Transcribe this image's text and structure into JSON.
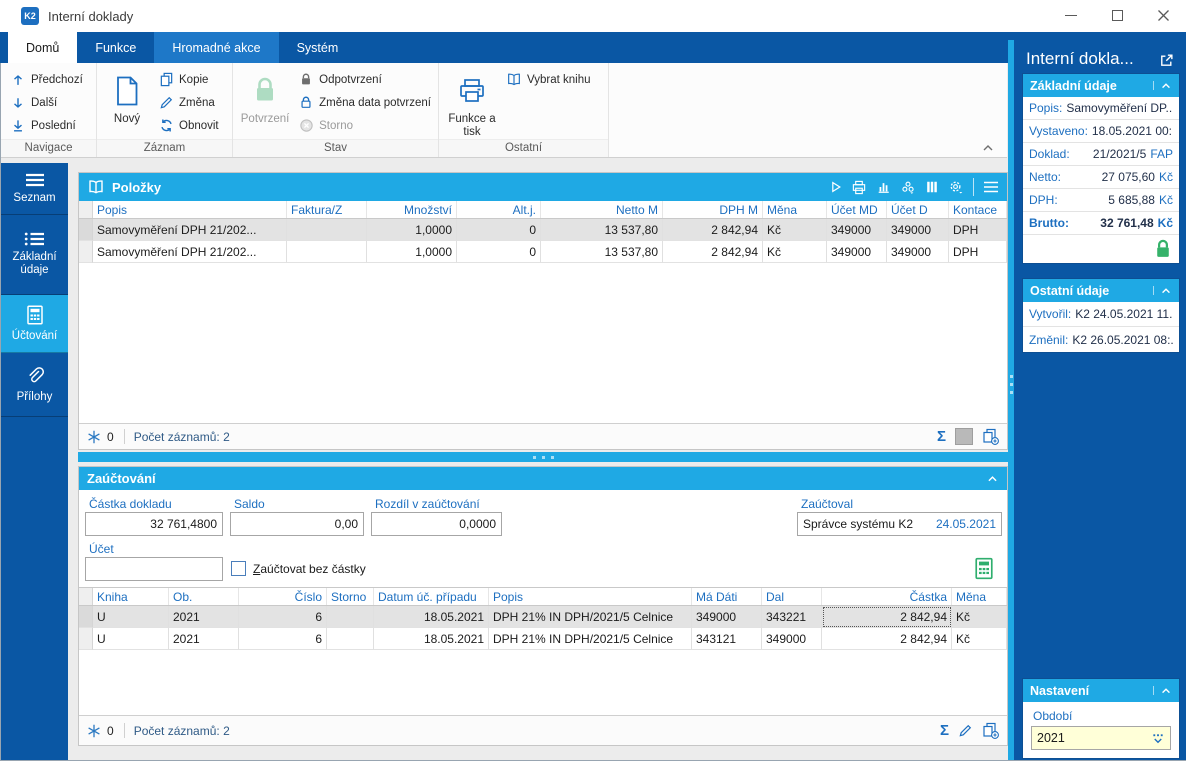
{
  "window": {
    "title": "Interní doklady",
    "logo_text": "K2"
  },
  "tabs": [
    {
      "label": "Domů",
      "state": "active"
    },
    {
      "label": "Funkce",
      "state": "normal"
    },
    {
      "label": "Hromadné akce",
      "state": "highlighted"
    },
    {
      "label": "Systém",
      "state": "normal"
    }
  ],
  "ribbon": {
    "groups": [
      {
        "label": "Navigace",
        "buttons": [
          {
            "label": "Předchozí",
            "icon": "arrow-up-icon"
          },
          {
            "label": "Další",
            "icon": "arrow-down-icon"
          },
          {
            "label": "Poslední",
            "icon": "arrow-down-line-icon"
          }
        ]
      },
      {
        "label": "Záznam",
        "big_button": {
          "label": "Nový",
          "icon": "new-document-icon"
        },
        "buttons": [
          {
            "label": "Kopie",
            "icon": "copy-icon"
          },
          {
            "label": "Změna",
            "icon": "pencil-icon"
          },
          {
            "label": "Obnovit",
            "icon": "refresh-icon"
          }
        ]
      },
      {
        "label": "Stav",
        "big_button": {
          "label": "Potvrzení",
          "icon": "lock-green-icon",
          "disabled": true
        },
        "buttons": [
          {
            "label": "Odpotvrzení",
            "icon": "lock-dark-icon"
          },
          {
            "label": "Změna data potvrzení",
            "icon": "lock-blue-icon"
          },
          {
            "label": "Storno",
            "icon": "cancel-circle-icon",
            "disabled": true
          }
        ]
      },
      {
        "label": "Ostatní",
        "big_button": {
          "label": "Funkce a tisk",
          "icon": "printer-icon"
        },
        "buttons": [
          {
            "label": "Vybrat knihu",
            "icon": "open-book-icon"
          }
        ]
      }
    ]
  },
  "sidebar": {
    "items": [
      {
        "label": "Seznam",
        "icon": "menu-lines-icon",
        "active": false
      },
      {
        "label": "Základní údaje",
        "icon": "detail-list-icon",
        "active": false
      },
      {
        "label": "Účtování",
        "icon": "calculator-icon",
        "active": true
      },
      {
        "label": "Přílohy",
        "icon": "paperclip-icon",
        "active": false
      }
    ]
  },
  "polozky_panel": {
    "title": "Položky",
    "toolbar_icons": [
      "run-icon",
      "print-icon",
      "chart-icon",
      "related-icon",
      "columns-icon",
      "settings-icon",
      "menu-icon"
    ],
    "table": {
      "columns": [
        "Popis",
        "Faktura/Z",
        "Množství",
        "Alt.j.",
        "Netto M",
        "DPH M",
        "Měna",
        "Účet MD",
        "Účet D",
        "Kontace"
      ],
      "rows": [
        [
          "Samovyměření DPH 21/202...",
          "",
          "1,0000",
          "0",
          "13 537,80",
          "2 842,94",
          "Kč",
          "349000",
          "349000",
          "DPH"
        ],
        [
          "Samovyměření DPH 21/202...",
          "",
          "1,0000",
          "0",
          "13 537,80",
          "2 842,94",
          "Kč",
          "349000",
          "349000",
          "DPH"
        ]
      ]
    },
    "footer": {
      "pinned_count": "0",
      "records_text": "Počet záznamů: 2"
    }
  },
  "zauctovani_panel": {
    "title": "Zaúčtování",
    "fields": {
      "castka_label": "Částka dokladu",
      "castka_value": "32 761,4800",
      "saldo_label": "Saldo",
      "saldo_value": "0,00",
      "rozdil_label": "Rozdíl v zaúčtování",
      "rozdil_value": "0,0000",
      "zauctoval_label": "Zaúčtoval",
      "zauctoval_value": "Správce systému K2",
      "zauctoval_date": "24.05.2021",
      "ucet_label": "Účet",
      "ucet_value": "",
      "checkbox_label": "Zaúčtovat bez částky"
    },
    "table": {
      "columns": [
        "Kniha",
        "Ob.",
        "Číslo",
        "Storno",
        "Datum úč. případu",
        "Popis",
        "Má Dáti",
        "Dal",
        "Částka",
        "Měna"
      ],
      "rows": [
        [
          "U",
          "2021",
          "6",
          "",
          "18.05.2021",
          "DPH 21% IN DPH/2021/5 Celnice",
          "349000",
          "343221",
          "2 842,94",
          "Kč"
        ],
        [
          "U",
          "2021",
          "6",
          "",
          "18.05.2021",
          "DPH 21% IN DPH/2021/5 Celnice",
          "343121",
          "349000",
          "2 842,94",
          "Kč"
        ]
      ]
    },
    "footer": {
      "pinned_count": "0",
      "records_text": "Počet záznamů: 2"
    }
  },
  "side_panel": {
    "title": "Interní dokla...",
    "zakladni_udaje": {
      "title": "Základní údaje",
      "inline_rows": [
        {
          "label": "Popis:",
          "value": "Samovyměření DP..."
        },
        {
          "label": "Vystaveno:",
          "value": "18.05.2021 00:..."
        }
      ],
      "amount_rows": [
        {
          "label": "Doklad:",
          "value": "21/2021/5",
          "unit": "FAP"
        },
        {
          "label": "Netto:",
          "value": "27 075,60",
          "unit": "Kč"
        },
        {
          "label": "DPH:",
          "value": "5 685,88",
          "unit": "Kč"
        },
        {
          "label": "Brutto:",
          "value": "32 761,48",
          "unit": "Kč"
        }
      ]
    },
    "ostatni_udaje": {
      "title": "Ostatní údaje",
      "rows": [
        {
          "label": "Vytvořil:",
          "value": "K2 24.05.2021 11..."
        },
        {
          "label": "Změnil:",
          "value": "K2 26.05.2021 08:..."
        }
      ]
    },
    "nastaveni": {
      "title": "Nastavení",
      "field_label": "Období",
      "field_value": "2021"
    }
  },
  "glyphs": {
    "sigma": "Σ"
  },
  "colors": {
    "accent_blue": "#0a57a4",
    "accent_cyan": "#1fa9e4",
    "label_blue": "#1d6fc0",
    "highlight_tab": "#1e78c8",
    "selected_row": "#e3e3e3",
    "confirmed_green": "#35b26a",
    "period_field_yellow": "#ffffd8"
  }
}
